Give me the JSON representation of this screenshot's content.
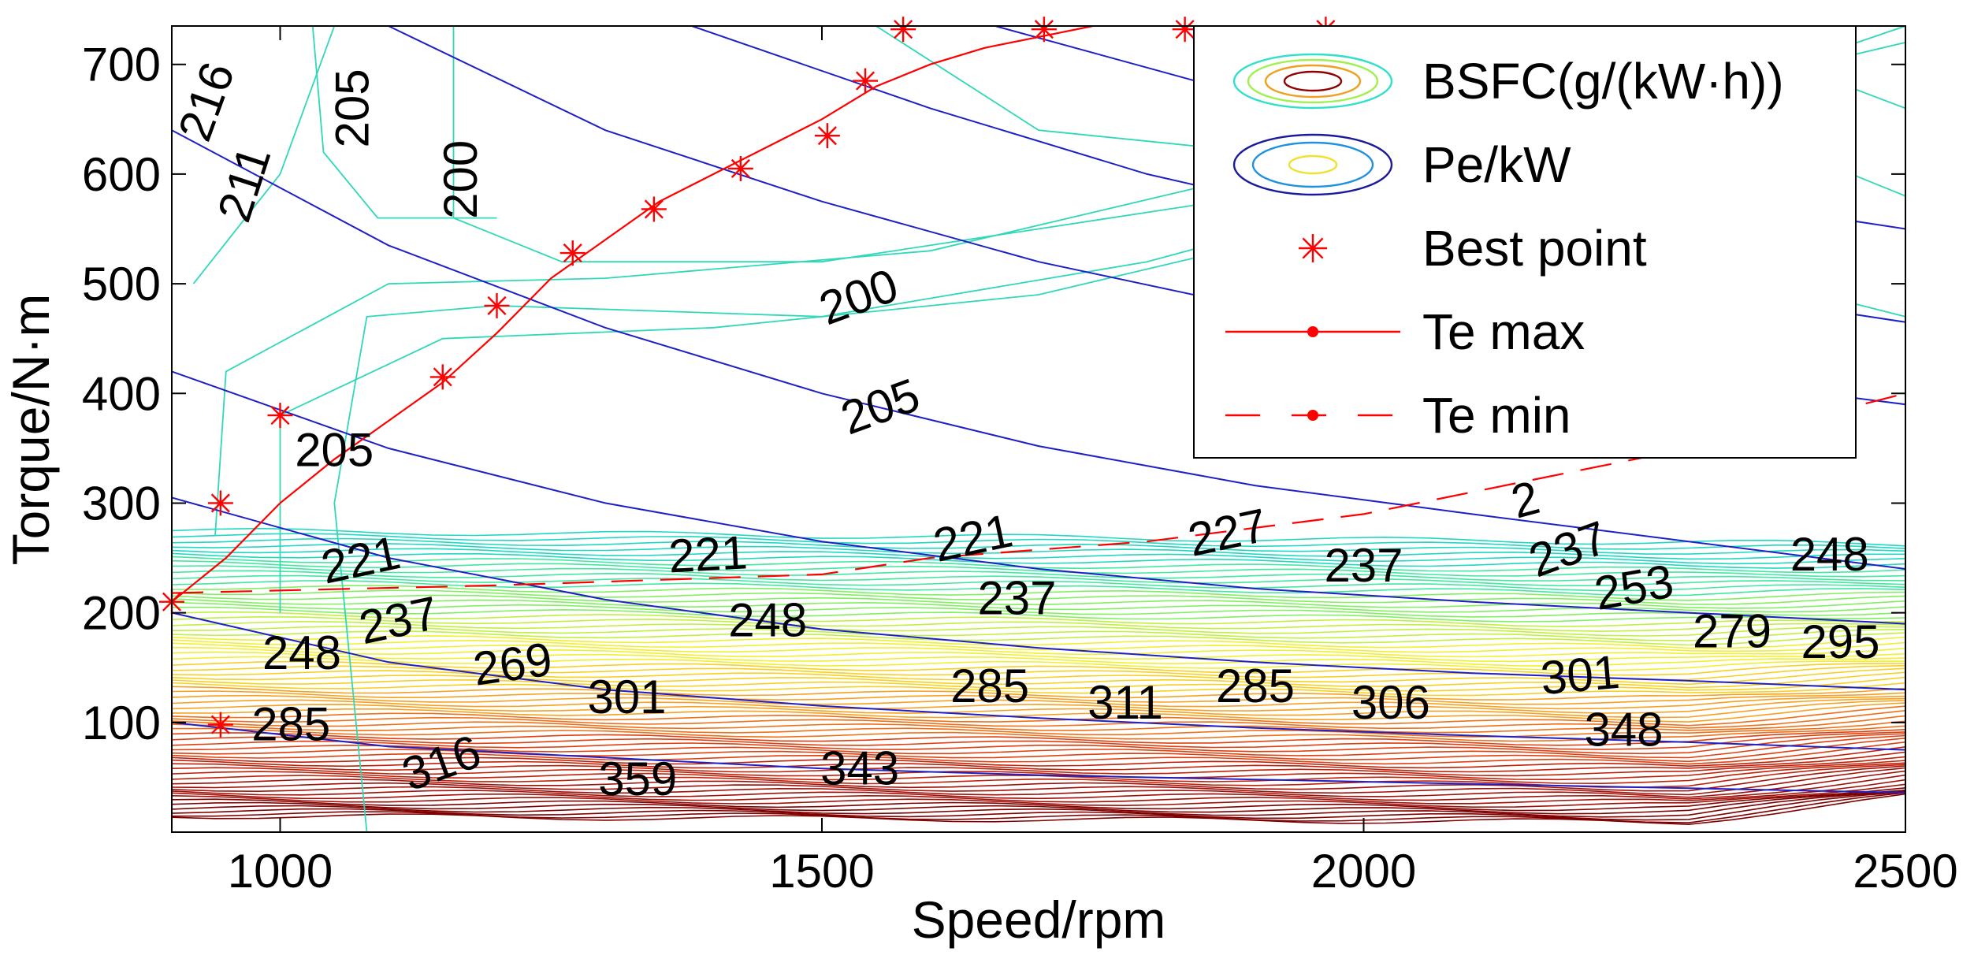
{
  "chart_data": {
    "type": "contour",
    "xlabel": "Speed/rpm",
    "ylabel": "Torque/N·m",
    "xlim": [
      900,
      2500
    ],
    "ylim": [
      0,
      735
    ],
    "xticks": [
      1000,
      1500,
      2000,
      2500
    ],
    "yticks": [
      100,
      200,
      300,
      400,
      500,
      600,
      700
    ],
    "grid": false,
    "legend_position": "top-right",
    "legend": [
      {
        "label": "BSFC(g/(kW·h))",
        "symbol": "bsfc-contour"
      },
      {
        "label": "Pe/kW",
        "symbol": "pe-contour"
      },
      {
        "label": "Best point",
        "symbol": "red-star"
      },
      {
        "label": "Te max",
        "symbol": "red-solid-line-dot"
      },
      {
        "label": "Te min",
        "symbol": "red-dashed-line-dot"
      }
    ],
    "best_points": [
      {
        "x": 900,
        "y": 210
      },
      {
        "x": 945,
        "y": 98
      },
      {
        "x": 945,
        "y": 300
      },
      {
        "x": 1000,
        "y": 380
      },
      {
        "x": 1150,
        "y": 415
      },
      {
        "x": 1200,
        "y": 480
      },
      {
        "x": 1270,
        "y": 528
      },
      {
        "x": 1345,
        "y": 568
      },
      {
        "x": 1425,
        "y": 605
      },
      {
        "x": 1505,
        "y": 635
      },
      {
        "x": 1540,
        "y": 685
      },
      {
        "x": 1575,
        "y": 732
      },
      {
        "x": 1705,
        "y": 732
      },
      {
        "x": 1835,
        "y": 732
      },
      {
        "x": 1965,
        "y": 732
      }
    ],
    "te_max": {
      "x": [
        900,
        950,
        1000,
        1050,
        1100,
        1150,
        1200,
        1250,
        1300,
        1350,
        1400,
        1450,
        1500,
        1550,
        1600,
        1650,
        1700,
        1750
      ],
      "y": [
        210,
        250,
        300,
        340,
        375,
        410,
        455,
        505,
        540,
        575,
        600,
        625,
        650,
        680,
        700,
        715,
        725,
        735
      ]
    },
    "te_min": {
      "x": [
        900,
        1200,
        1500,
        1600,
        1800,
        2000,
        2200,
        2300,
        2500
      ],
      "y": [
        218,
        225,
        235,
        250,
        265,
        290,
        330,
        350,
        400
      ]
    },
    "pe_curves": [
      {
        "values": [
          [
            900,
            640
          ],
          [
            1100,
            535
          ],
          [
            1300,
            460
          ],
          [
            1500,
            400
          ],
          [
            1700,
            352
          ],
          [
            1900,
            316
          ],
          [
            2100,
            290
          ],
          [
            2300,
            265
          ],
          [
            2500,
            240
          ]
        ]
      },
      {
        "values": [
          [
            900,
            420
          ],
          [
            1100,
            350
          ],
          [
            1300,
            300
          ],
          [
            1500,
            265
          ],
          [
            1700,
            240
          ],
          [
            1900,
            222
          ],
          [
            2100,
            210
          ],
          [
            2300,
            200
          ],
          [
            2500,
            190
          ]
        ]
      },
      {
        "values": [
          [
            900,
            305
          ],
          [
            1100,
            250
          ],
          [
            1300,
            212
          ],
          [
            1500,
            185
          ],
          [
            1700,
            168
          ],
          [
            1900,
            155
          ],
          [
            2100,
            145
          ],
          [
            2300,
            138
          ],
          [
            2500,
            130
          ]
        ]
      },
      {
        "values": [
          [
            900,
            200
          ],
          [
            1100,
            155
          ],
          [
            1300,
            130
          ],
          [
            1500,
            115
          ],
          [
            1700,
            104
          ],
          [
            1900,
            95
          ],
          [
            2100,
            88
          ],
          [
            2300,
            82
          ],
          [
            2500,
            75
          ]
        ]
      },
      {
        "values": [
          [
            900,
            100
          ],
          [
            1100,
            78
          ],
          [
            1300,
            68
          ],
          [
            1500,
            58
          ],
          [
            1700,
            52
          ],
          [
            1900,
            48
          ],
          [
            2100,
            44
          ],
          [
            2300,
            40
          ],
          [
            2500,
            36
          ]
        ]
      },
      {
        "values": [
          [
            1100,
            735
          ],
          [
            1300,
            640
          ],
          [
            1500,
            575
          ],
          [
            1700,
            520
          ],
          [
            1900,
            478
          ],
          [
            2100,
            445
          ],
          [
            2300,
            415
          ],
          [
            2500,
            390
          ]
        ]
      },
      {
        "values": [
          [
            1380,
            735
          ],
          [
            1600,
            660
          ],
          [
            1800,
            600
          ],
          [
            2000,
            555
          ],
          [
            2200,
            515
          ],
          [
            2400,
            480
          ],
          [
            2500,
            465
          ]
        ]
      },
      {
        "values": [
          [
            1660,
            735
          ],
          [
            1900,
            670
          ],
          [
            2100,
            620
          ],
          [
            2300,
            580
          ],
          [
            2500,
            550
          ]
        ]
      }
    ],
    "bsfc_labels": [
      {
        "x": 935,
        "y": 665,
        "text": "216",
        "rot": -70
      },
      {
        "x": 1070,
        "y": 660,
        "text": "205",
        "rot": -90
      },
      {
        "x": 970,
        "y": 590,
        "text": "211",
        "rot": -72
      },
      {
        "x": 1170,
        "y": 595,
        "text": "200",
        "rot": -90
      },
      {
        "x": 1535,
        "y": 485,
        "text": "200",
        "rot": -20
      },
      {
        "x": 1555,
        "y": 385,
        "text": "205",
        "rot": -20
      },
      {
        "x": 1050,
        "y": 345,
        "text": "205",
        "rot": 0
      },
      {
        "x": 1075,
        "y": 245,
        "text": "221",
        "rot": -12
      },
      {
        "x": 1110,
        "y": 190,
        "text": "237",
        "rot": -12
      },
      {
        "x": 1395,
        "y": 250,
        "text": "221",
        "rot": -3
      },
      {
        "x": 1640,
        "y": 265,
        "text": "221",
        "rot": -12
      },
      {
        "x": 1875,
        "y": 270,
        "text": "227",
        "rot": -12
      },
      {
        "x": 2150,
        "y": 300,
        "text": "2",
        "rot": -15
      },
      {
        "x": 1680,
        "y": 210,
        "text": "237",
        "rot": 0
      },
      {
        "x": 1450,
        "y": 190,
        "text": "248",
        "rot": 0
      },
      {
        "x": 1020,
        "y": 160,
        "text": "248",
        "rot": 0
      },
      {
        "x": 2000,
        "y": 240,
        "text": "237",
        "rot": 0
      },
      {
        "x": 2190,
        "y": 255,
        "text": "237",
        "rot": -20
      },
      {
        "x": 2250,
        "y": 220,
        "text": "253",
        "rot": -10
      },
      {
        "x": 2430,
        "y": 250,
        "text": "248",
        "rot": 0
      },
      {
        "x": 2340,
        "y": 180,
        "text": "279",
        "rot": 0
      },
      {
        "x": 2440,
        "y": 170,
        "text": "295",
        "rot": 0
      },
      {
        "x": 1215,
        "y": 150,
        "text": "269",
        "rot": -8
      },
      {
        "x": 1320,
        "y": 120,
        "text": "301",
        "rot": 0
      },
      {
        "x": 1010,
        "y": 95,
        "text": "285",
        "rot": 0
      },
      {
        "x": 1655,
        "y": 130,
        "text": "285",
        "rot": 0
      },
      {
        "x": 1900,
        "y": 130,
        "text": "285",
        "rot": 0
      },
      {
        "x": 1780,
        "y": 115,
        "text": "311",
        "rot": 0
      },
      {
        "x": 2025,
        "y": 115,
        "text": "306",
        "rot": 0
      },
      {
        "x": 2200,
        "y": 140,
        "text": "301",
        "rot": -5
      },
      {
        "x": 2240,
        "y": 90,
        "text": "348",
        "rot": 0
      },
      {
        "x": 1150,
        "y": 60,
        "text": "316",
        "rot": -20
      },
      {
        "x": 1330,
        "y": 45,
        "text": "359",
        "rot": 0
      },
      {
        "x": 1535,
        "y": 55,
        "text": "343",
        "rot": 0
      }
    ]
  },
  "colors": {
    "pe_line": "#1f1fc8",
    "best_point": "#ff0000",
    "te_line": "#ff0000",
    "bsfc_palette": [
      "#20d8c0",
      "#40e8a0",
      "#80f060",
      "#c0f040",
      "#f0f030",
      "#f8d020",
      "#f8a020",
      "#f07018",
      "#e04010",
      "#c02008",
      "#a01008",
      "#800000"
    ]
  }
}
